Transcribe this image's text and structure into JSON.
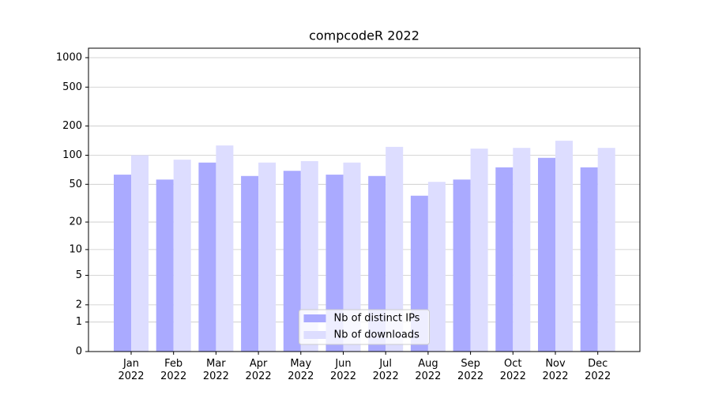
{
  "chart_data": {
    "type": "bar",
    "title": "compcodeR 2022",
    "categories": [
      "Jan\n2022",
      "Feb\n2022",
      "Mar\n2022",
      "Apr\n2022",
      "May\n2022",
      "Jun\n2022",
      "Jul\n2022",
      "Aug\n2022",
      "Sep\n2022",
      "Oct\n2022",
      "Nov\n2022",
      "Dec\n2022"
    ],
    "series": [
      {
        "name": "Nb of distinct IPs",
        "color": "#aaaaff",
        "values": [
          63,
          56,
          84,
          61,
          69,
          63,
          61,
          38,
          56,
          75,
          94,
          75
        ]
      },
      {
        "name": "Nb of downloads",
        "color": "#ddddff",
        "values": [
          100,
          90,
          126,
          84,
          87,
          84,
          122,
          53,
          117,
          119,
          141,
          119
        ]
      }
    ],
    "yscale": "log1p",
    "ylim": [
      0,
      1250
    ],
    "yticks": [
      0,
      1,
      2,
      5,
      10,
      20,
      50,
      100,
      200,
      500,
      1000
    ],
    "grid": true,
    "legend": "lower center"
  }
}
